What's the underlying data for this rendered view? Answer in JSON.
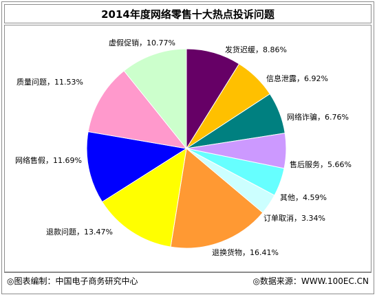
{
  "chart_data": {
    "type": "pie",
    "title": "2014年度网络零售十大热点投诉问题",
    "slices": [
      {
        "label": "发货迟缓",
        "value": 8.86,
        "display": "发货迟缓，8.86%",
        "color": "#660066"
      },
      {
        "label": "信息泄露",
        "value": 6.92,
        "display": "信息泄露，6.92%",
        "color": "#ffc000"
      },
      {
        "label": "网络诈骗",
        "value": 6.76,
        "display": "网络诈骗，6.76%",
        "color": "#008080"
      },
      {
        "label": "售后服务",
        "value": 5.66,
        "display": "售后服务，5.66%",
        "color": "#cc99ff"
      },
      {
        "label": "其他",
        "value": 4.59,
        "display": "其他，4.59%",
        "color": "#66ffff"
      },
      {
        "label": "订单取消",
        "value": 3.34,
        "display": "订单取消，3.34%",
        "color": "#ccffff"
      },
      {
        "label": "退换货物",
        "value": 16.41,
        "display": "退换货物，16.41%",
        "color": "#ff9933"
      },
      {
        "label": "退款问题",
        "value": 13.47,
        "display": "退款问题，13.47%",
        "color": "#ffff00"
      },
      {
        "label": "网络售假",
        "value": 11.69,
        "display": "网络售假，11.69%",
        "color": "#0000ff"
      },
      {
        "label": "质量问题",
        "value": 11.53,
        "display": "质量问题，11.53%",
        "color": "#ff99cc"
      },
      {
        "label": "虚假促销",
        "value": 10.77,
        "display": "虚假促销，10.77%",
        "color": "#ccffcc"
      }
    ]
  },
  "footer": {
    "source_left": "◎图表编制：中国电子商务研究中心",
    "source_right": "◎数据来源：WWW.100EC.CN"
  }
}
